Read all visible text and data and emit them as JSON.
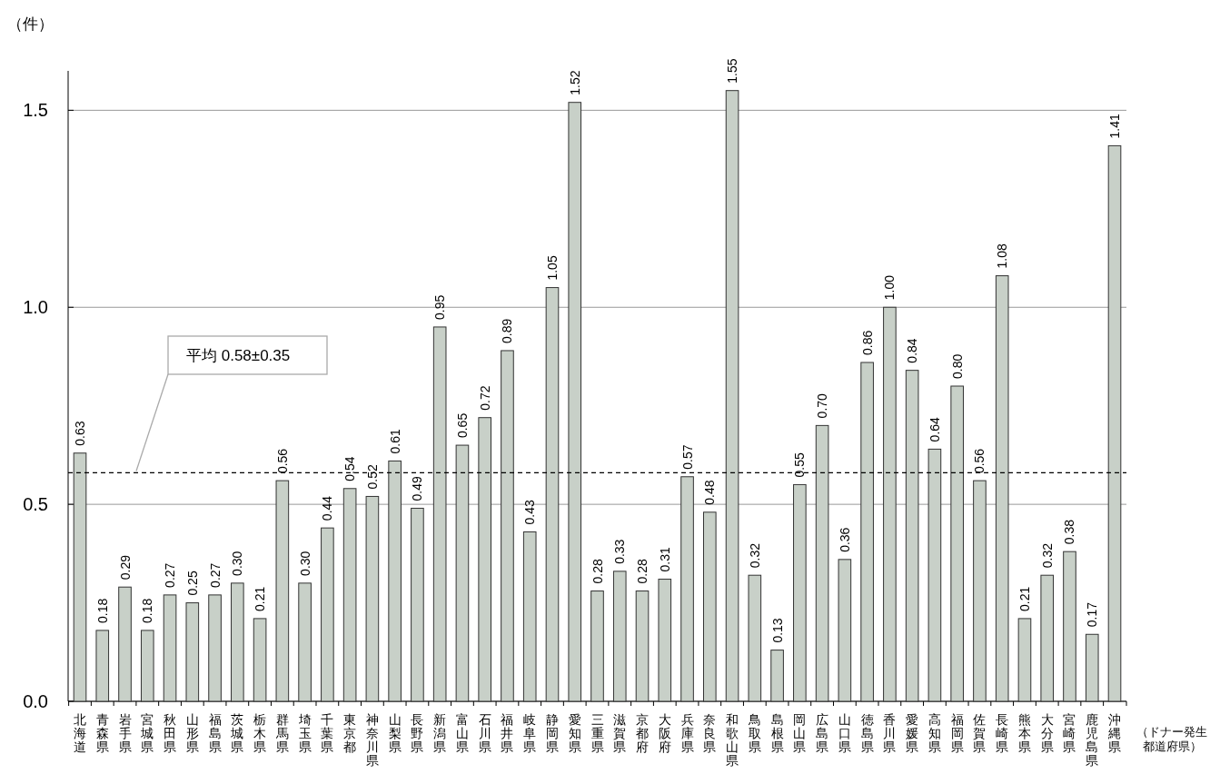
{
  "chart_data": {
    "type": "bar",
    "ylabel": "（件）",
    "xlabel": "（ドナー発生都道府県）",
    "categories": [
      "北海道",
      "青森県",
      "岩手県",
      "宮城県",
      "秋田県",
      "山形県",
      "福島県",
      "茨城県",
      "栃木県",
      "群馬県",
      "埼玉県",
      "千葉県",
      "東京都",
      "神奈川県",
      "山梨県",
      "長野県",
      "新潟県",
      "富山県",
      "石川県",
      "福井県",
      "岐阜県",
      "静岡県",
      "愛知県",
      "三重県",
      "滋賀県",
      "京都府",
      "大阪府",
      "兵庫県",
      "奈良県",
      "和歌山県",
      "鳥取県",
      "島根県",
      "岡山県",
      "広島県",
      "山口県",
      "徳島県",
      "香川県",
      "愛媛県",
      "高知県",
      "福岡県",
      "佐賀県",
      "長崎県",
      "熊本県",
      "大分県",
      "宮崎県",
      "鹿児島県",
      "沖縄県"
    ],
    "values": [
      0.63,
      0.18,
      0.29,
      0.18,
      0.27,
      0.25,
      0.27,
      0.3,
      0.21,
      0.56,
      0.3,
      0.44,
      0.54,
      0.52,
      0.61,
      0.49,
      0.95,
      0.65,
      0.72,
      0.89,
      0.43,
      1.05,
      1.52,
      0.28,
      0.33,
      0.28,
      0.31,
      0.57,
      0.48,
      1.55,
      0.32,
      0.13,
      0.55,
      0.7,
      0.36,
      0.86,
      1.0,
      0.84,
      0.64,
      0.8,
      0.56,
      1.08,
      0.21,
      0.32,
      0.38,
      0.17,
      1.41
    ],
    "value_labels": [
      "0.63",
      "0.18",
      "0.29",
      "0.18",
      "0.27",
      "0.25",
      "0.27",
      "0.30",
      "0.21",
      "0.56",
      "0.30",
      "0.44",
      "0.54",
      "0.52",
      "0.61",
      "0.49",
      "0.95",
      "0.65",
      "0.72",
      "0.89",
      "0.43",
      "1.05",
      "1.52",
      "0.28",
      "0.33",
      "0.28",
      "0.31",
      "0.57",
      "0.48",
      "1.55",
      "0.32",
      "0.13",
      "0.55",
      "0.70",
      "0.36",
      "0.86",
      "1.00",
      "0.84",
      "0.64",
      "0.80",
      "0.56",
      "1.08",
      "0.21",
      "0.32",
      "0.38",
      "0.17",
      "1.41"
    ],
    "color": "#c8d0c8",
    "ylim": [
      0,
      1.6
    ],
    "yticks": [
      {
        "value": 0,
        "label": "0.0"
      },
      {
        "value": 0.5,
        "label": "0.5"
      },
      {
        "value": 1,
        "label": "1.0"
      },
      {
        "value": 1.5,
        "label": "1.5"
      }
    ],
    "grid": "y",
    "ref_lines": [
      {
        "axis": "y",
        "value": 0.58,
        "label": "平均 0.58±0.35",
        "color": "#000000",
        "line_style": "dashed"
      }
    ]
  }
}
